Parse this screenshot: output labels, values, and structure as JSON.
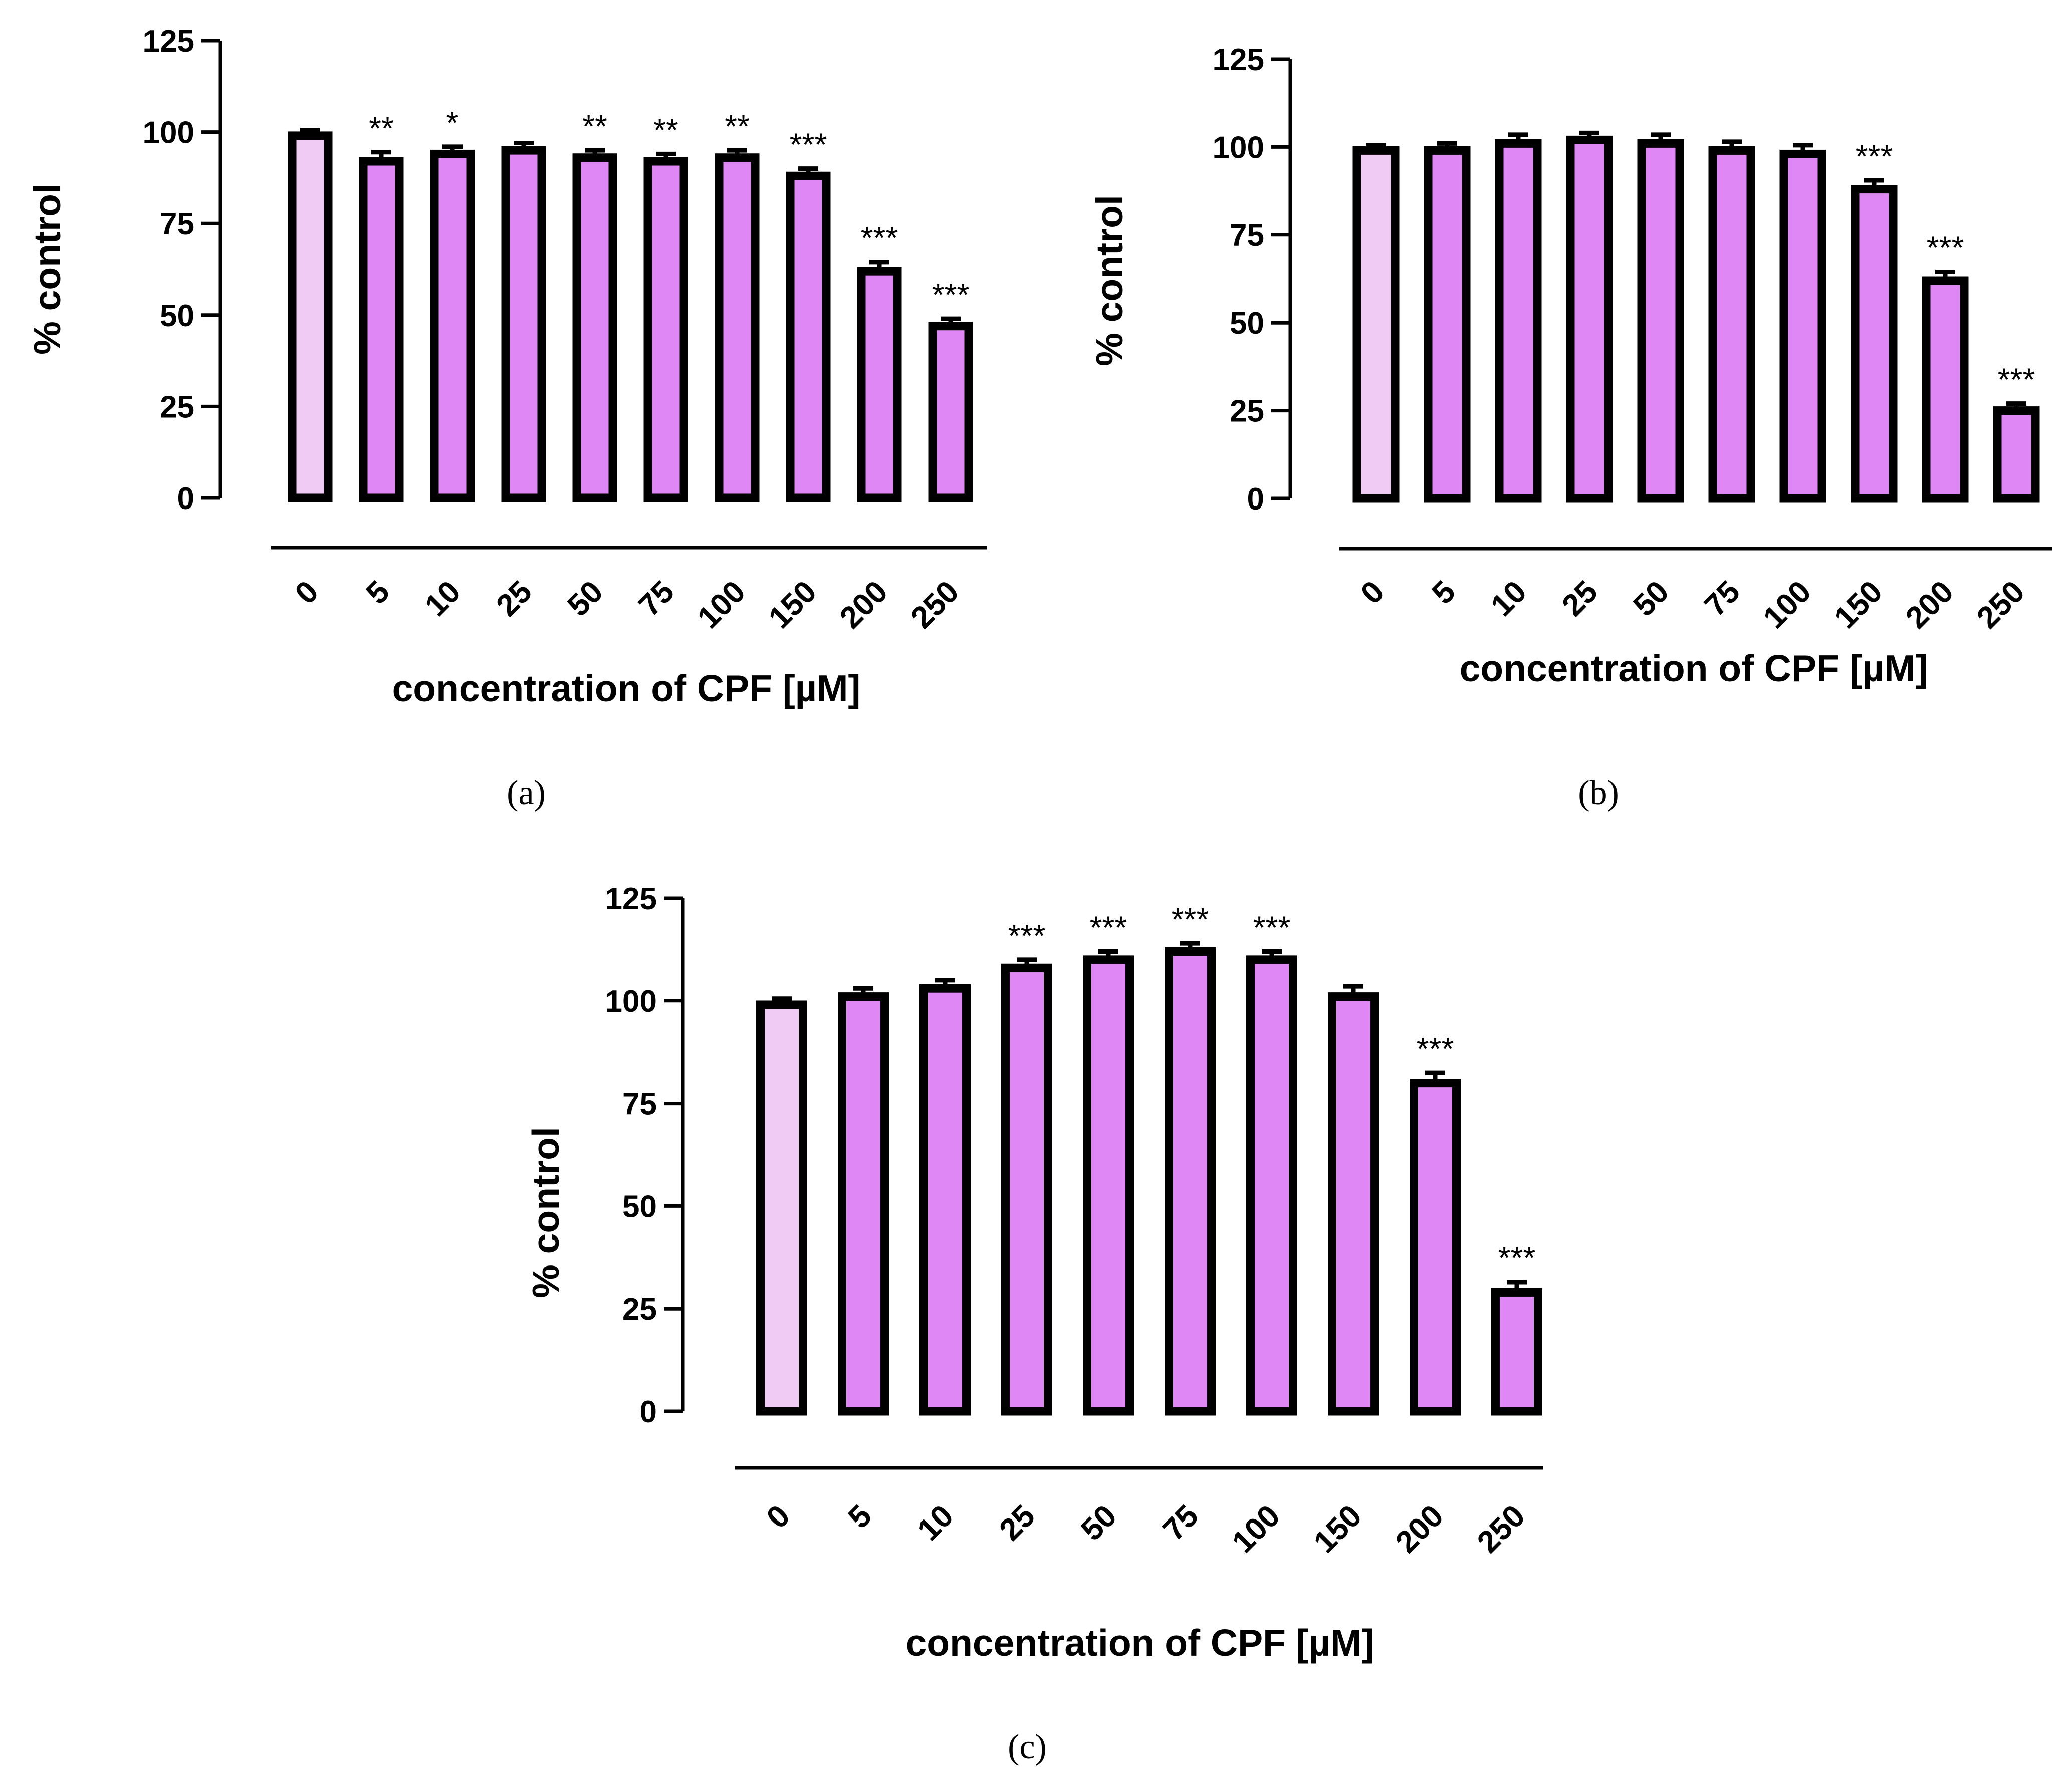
{
  "figure": {
    "background": "#ffffff"
  },
  "style": {
    "control_fill": "#f0ccf5",
    "bar_fill": "#df88f5",
    "stroke": "#000000"
  },
  "chart_data": [
    {
      "type": "bar",
      "panel_label": "(a)",
      "categories": [
        "0",
        "5",
        "10",
        "25",
        "50",
        "75",
        "100",
        "150",
        "200",
        "250"
      ],
      "values": [
        99,
        92,
        94,
        95,
        93,
        92,
        93,
        88,
        62,
        47
      ],
      "errors": [
        1.5,
        2.5,
        2,
        2,
        2,
        2,
        2,
        2,
        2.5,
        2
      ],
      "significance": [
        "",
        "**",
        "*",
        "",
        "**",
        "**",
        "**",
        "***",
        "***",
        "***"
      ],
      "title": "",
      "xlabel": "concentration of CPF [µM]",
      "ylabel": "% control",
      "ylim": [
        0,
        125
      ],
      "yticks": [
        "0",
        "25",
        "50",
        "75",
        "100",
        "125"
      ]
    },
    {
      "type": "bar",
      "panel_label": "(b)",
      "categories": [
        "0",
        "5",
        "10",
        "25",
        "50",
        "75",
        "100",
        "150",
        "200",
        "250"
      ],
      "values": [
        99,
        99,
        101,
        102,
        101,
        99,
        98,
        88,
        62,
        25
      ],
      "errors": [
        1.5,
        2,
        2.5,
        2,
        2.5,
        2.5,
        2.5,
        2.5,
        2.5,
        2
      ],
      "significance": [
        "",
        "",
        "",
        "",
        "",
        "",
        "",
        "***",
        "***",
        "***"
      ],
      "title": "",
      "xlabel": "concentration of CPF [µM]",
      "ylabel": "% control",
      "ylim": [
        0,
        125
      ],
      "yticks": [
        "0",
        "25",
        "50",
        "75",
        "100",
        "125"
      ]
    },
    {
      "type": "bar",
      "panel_label": "(c)",
      "categories": [
        "0",
        "5",
        "10",
        "25",
        "50",
        "75",
        "100",
        "150",
        "200",
        "250"
      ],
      "values": [
        99,
        101,
        103,
        108,
        110,
        112,
        110,
        101,
        80,
        29
      ],
      "errors": [
        1.5,
        2,
        2,
        2,
        2,
        2,
        2,
        2.5,
        2.5,
        2.5
      ],
      "significance": [
        "",
        "",
        "",
        "***",
        "***",
        "***",
        "***",
        "",
        "***",
        "***"
      ],
      "title": "",
      "xlabel": "concentration of CPF [µM]",
      "ylabel": "% control",
      "ylim": [
        0,
        125
      ],
      "yticks": [
        "0",
        "25",
        "50",
        "75",
        "100",
        "125"
      ]
    }
  ]
}
